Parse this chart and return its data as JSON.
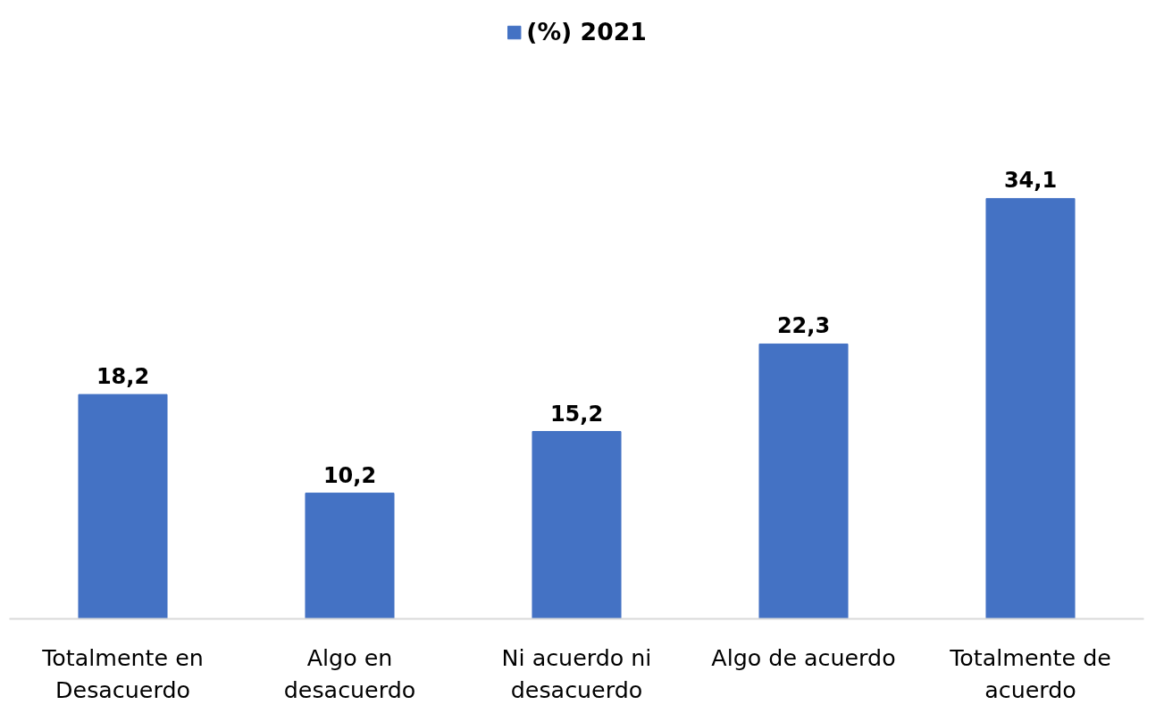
{
  "chart_data": {
    "type": "bar",
    "categories": [
      "Totalmente en Desacuerdo",
      "Algo en desacuerdo",
      "Ni acuerdo ni desacuerdo",
      "Algo de acuerdo",
      "Totalmente de acuerdo"
    ],
    "series": [
      {
        "name": "(%) 2021",
        "color": "#4472c4",
        "values": [
          18.2,
          10.2,
          15.2,
          22.3,
          34.1
        ],
        "value_labels": [
          "18,2",
          "10,2",
          "15,2",
          "22,3",
          "34,1"
        ]
      }
    ],
    "legend": "top",
    "grid": false
  }
}
